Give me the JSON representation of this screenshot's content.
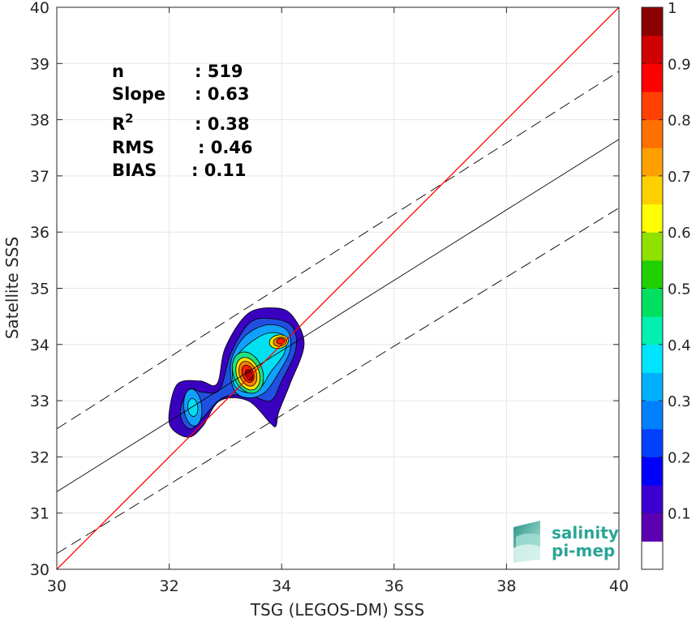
{
  "chart_data": {
    "type": "heatmap",
    "xlabel": "TSG (LEGOS-DM) SSS",
    "ylabel": "Satellite SSS",
    "xlim": [
      30,
      40
    ],
    "ylim": [
      30,
      40
    ],
    "xticks": [
      "30",
      "32",
      "34",
      "36",
      "38",
      "40"
    ],
    "yticks": [
      "30",
      "31",
      "32",
      "33",
      "34",
      "35",
      "36",
      "37",
      "38",
      "39",
      "40"
    ],
    "grid": true,
    "stats": [
      {
        "key": "n",
        "value": ": 519"
      },
      {
        "key": "Slope",
        "value": ": 0.63"
      },
      {
        "key": "R",
        "sup": "2",
        "value": ": 0.38"
      },
      {
        "key": "RMS",
        "value": ": 0.46"
      },
      {
        "key": "BIAS",
        "value": ": 0.11"
      }
    ],
    "lines": {
      "identity": {
        "x": [
          30,
          40
        ],
        "y": [
          30,
          40
        ],
        "color": "#ff0000"
      },
      "fit": {
        "x": [
          30,
          40
        ],
        "y": [
          31.38,
          37.65
        ],
        "color": "#000000"
      },
      "fit_upper": {
        "x": [
          30,
          40
        ],
        "y": [
          32.5,
          38.86
        ],
        "color": "#000000",
        "style": "dashed"
      },
      "fit_lower": {
        "x": [
          30,
          40
        ],
        "y": [
          30.28,
          36.43
        ],
        "color": "#000000",
        "style": "dashed"
      }
    },
    "density_peaks": [
      {
        "x": 33.4,
        "y": 33.5,
        "value": 1.0
      },
      {
        "x": 33.95,
        "y": 34.05,
        "value": 0.8
      },
      {
        "x": 32.4,
        "y": 32.85,
        "value": 0.4
      }
    ],
    "colorbar": {
      "min": 0,
      "max": 1,
      "ticks": [
        "0.1",
        "0.2",
        "0.3",
        "0.4",
        "0.5",
        "0.6",
        "0.7",
        "0.8",
        "0.9",
        "1"
      ],
      "colors": [
        "#ffffff",
        "#5a00b0",
        "#3a00d0",
        "#0000ff",
        "#0040ff",
        "#0080ff",
        "#00b0ff",
        "#00e5ff",
        "#00f0b0",
        "#00e060",
        "#20d000",
        "#90e000",
        "#ffff00",
        "#ffd000",
        "#ffa000",
        "#ff7000",
        "#ff4000",
        "#ff0000",
        "#d00000",
        "#8b0000"
      ]
    },
    "contour_colors": [
      "#3a00c0",
      "#2050e0",
      "#10a0ff",
      "#00e0f0",
      "#20e080",
      "#ffe000",
      "#ff8000",
      "#ff2000",
      "#b00000"
    ]
  },
  "logo": {
    "line1": "salinity",
    "line2": "pi-mep",
    "color": "#2aa596"
  }
}
